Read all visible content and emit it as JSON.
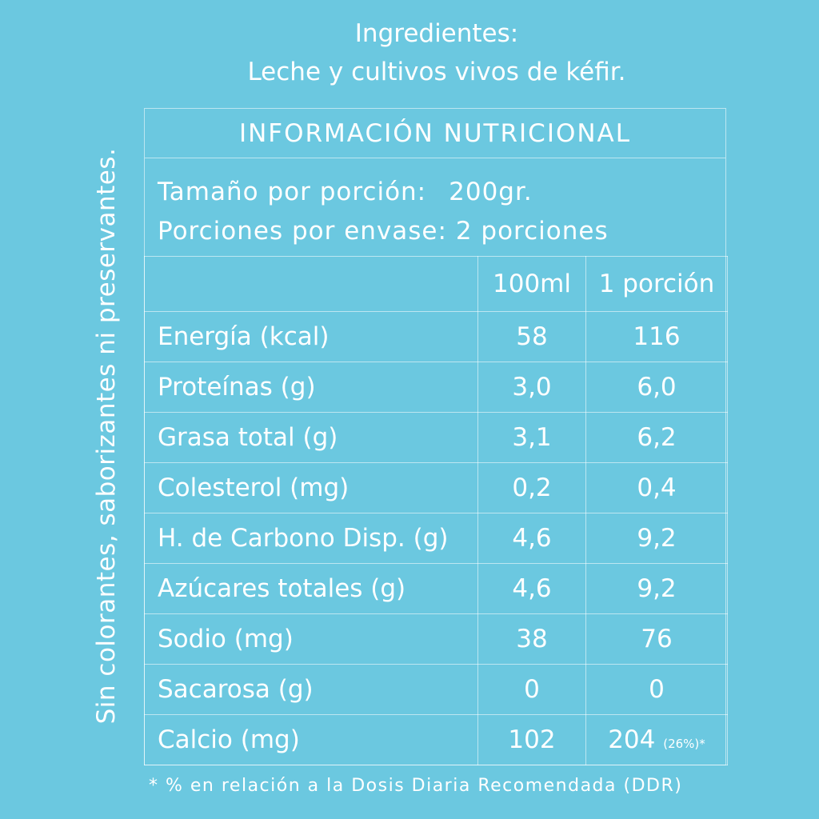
{
  "ingredients": {
    "heading": "Ingredientes:",
    "text": "Leche y cultivos vivos de kéfir."
  },
  "side_note": "Sin colorantes, saborizantes ni preservantes.",
  "panel": {
    "title": "INFORMACIÓN NUTRICIONAL",
    "serving_size_label": "Tamaño por porción:",
    "serving_size_value": "200gr.",
    "servings_label": "Porciones por envase:",
    "servings_value": "2 porciones"
  },
  "table": {
    "headers": [
      "",
      "100ml",
      "1 porción"
    ],
    "rows": [
      {
        "label": "Energía (kcal)",
        "per_100ml": "58",
        "per_portion": "116",
        "note": ""
      },
      {
        "label": "Proteínas (g)",
        "per_100ml": "3,0",
        "per_portion": "6,0",
        "note": ""
      },
      {
        "label": "Grasa total (g)",
        "per_100ml": "3,1",
        "per_portion": "6,2",
        "note": ""
      },
      {
        "label": "Colesterol (mg)",
        "per_100ml": "0,2",
        "per_portion": "0,4",
        "note": ""
      },
      {
        "label": "H. de Carbono Disp. (g)",
        "per_100ml": "4,6",
        "per_portion": "9,2",
        "note": ""
      },
      {
        "label": "Azúcares totales (g)",
        "per_100ml": "4,6",
        "per_portion": "9,2",
        "note": ""
      },
      {
        "label": "Sodio (mg)",
        "per_100ml": "38",
        "per_portion": "76",
        "note": ""
      },
      {
        "label": "Sacarosa (g)",
        "per_100ml": "0",
        "per_portion": "0",
        "note": ""
      },
      {
        "label": "Calcio (mg)",
        "per_100ml": "102",
        "per_portion": "204",
        "note": "(26%)*"
      }
    ]
  },
  "footnote": "* % en relación a la Dosis Diaria Recomendada (DDR)",
  "colors": {
    "background": "#6bc8e0",
    "text": "#ffffff"
  }
}
